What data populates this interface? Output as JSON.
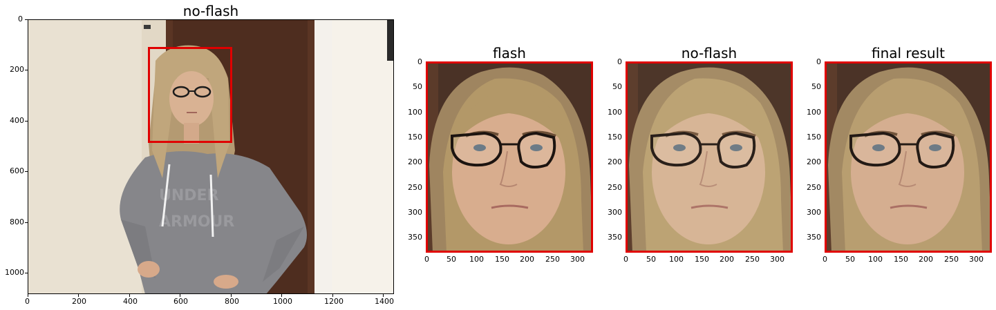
{
  "panels": [
    {
      "id": "full",
      "title": "no-flash",
      "x_ticks": [
        "0",
        "200",
        "400",
        "600",
        "800",
        "1000",
        "1200",
        "1400"
      ],
      "y_ticks": [
        "0",
        "200",
        "400",
        "600",
        "800",
        "1000"
      ],
      "has_face_box": true
    },
    {
      "id": "flash",
      "title": "flash",
      "x_ticks": [
        "0",
        "50",
        "100",
        "150",
        "200",
        "250",
        "300"
      ],
      "y_ticks": [
        "0",
        "50",
        "100",
        "150",
        "200",
        "250",
        "300",
        "350"
      ]
    },
    {
      "id": "noflash",
      "title": "no-flash",
      "x_ticks": [
        "0",
        "50",
        "100",
        "150",
        "200",
        "250",
        "300"
      ],
      "y_ticks": [
        "0",
        "50",
        "100",
        "150",
        "200",
        "250",
        "300",
        "350"
      ]
    },
    {
      "id": "result",
      "title": "final result",
      "x_ticks": [
        "0",
        "50",
        "100",
        "150",
        "200",
        "250",
        "300"
      ],
      "y_ticks": [
        "0",
        "50",
        "100",
        "150",
        "200",
        "250",
        "300",
        "350"
      ]
    }
  ],
  "colors": {
    "box": "#e00000",
    "wall": "#ece4d6",
    "door": "#5a3524",
    "hoodie": "#86868a",
    "hair": "#b49a72",
    "skin_flash": "#d8ad8e",
    "skin_noflash": "#d7b596",
    "skin_result": "#d5ae90",
    "bg_face": "#4a3226"
  }
}
